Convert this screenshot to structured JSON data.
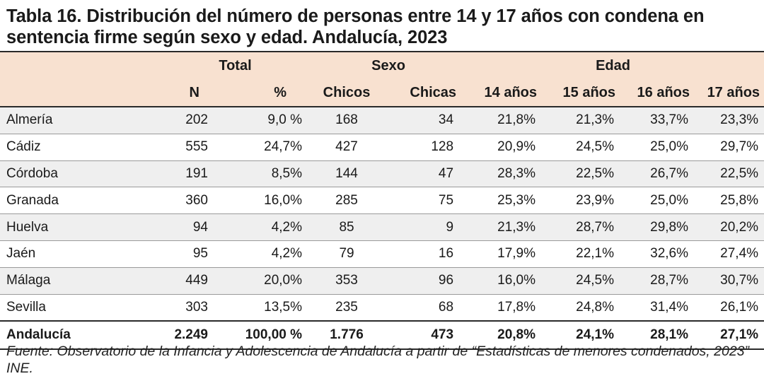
{
  "title": "Tabla 16. Distribución del número de personas entre 14 y 17 años con condena en sentencia firme según sexo y edad. Andalucía, 2023",
  "header": {
    "groups": {
      "total": "Total",
      "sexo": "Sexo",
      "edad": "Edad"
    },
    "columns": [
      "N",
      "%",
      "Chicos",
      "Chicas",
      "14 años",
      "15 años",
      "16 años",
      "17 años"
    ]
  },
  "rows": [
    {
      "name": "Almería",
      "n": "202",
      "pct": "9,0 %",
      "chicos": "168",
      "chicas": "34",
      "a14": "21,8%",
      "a15": "21,3%",
      "a16": "33,7%",
      "a17": "23,3%"
    },
    {
      "name": "Cádiz",
      "n": "555",
      "pct": "24,7%",
      "chicos": "427",
      "chicas": "128",
      "a14": "20,9%",
      "a15": "24,5%",
      "a16": "25,0%",
      "a17": "29,7%"
    },
    {
      "name": "Córdoba",
      "n": "191",
      "pct": "8,5%",
      "chicos": "144",
      "chicas": "47",
      "a14": "28,3%",
      "a15": "22,5%",
      "a16": "26,7%",
      "a17": "22,5%"
    },
    {
      "name": "Granada",
      "n": "360",
      "pct": "16,0%",
      "chicos": "285",
      "chicas": "75",
      "a14": "25,3%",
      "a15": "23,9%",
      "a16": "25,0%",
      "a17": "25,8%"
    },
    {
      "name": "Huelva",
      "n": "94",
      "pct": "4,2%",
      "chicos": "85",
      "chicas": "9",
      "a14": "21,3%",
      "a15": "28,7%",
      "a16": "29,8%",
      "a17": "20,2%"
    },
    {
      "name": "Jaén",
      "n": "95",
      "pct": "4,2%",
      "chicos": "79",
      "chicas": "16",
      "a14": "17,9%",
      "a15": "22,1%",
      "a16": "32,6%",
      "a17": "27,4%"
    },
    {
      "name": "Málaga",
      "n": "449",
      "pct": "20,0%",
      "chicos": "353",
      "chicas": "96",
      "a14": "16,0%",
      "a15": "24,5%",
      "a16": "28,7%",
      "a17": "30,7%"
    },
    {
      "name": "Sevilla",
      "n": "303",
      "pct": "13,5%",
      "chicos": "235",
      "chicas": "68",
      "a14": "17,8%",
      "a15": "24,8%",
      "a16": "31,4%",
      "a17": "26,1%"
    }
  ],
  "total": {
    "name": "Andalucía",
    "n": "2.249",
    "pct": "100,00 %",
    "chicos": "1.776",
    "chicas": "473",
    "a14": "20,8%",
    "a15": "24,1%",
    "a16": "28,1%",
    "a17": "27,1%"
  },
  "source": "Fuente: Observatorio de la Infancia y Adolescencia de Andalucía a partir de “Estadísticas de menores condenados, 2023” INE.",
  "colors": {
    "header_bg": "#f8e1d0",
    "stripe_bg": "#efefef",
    "rule": "#2a2a2a"
  }
}
